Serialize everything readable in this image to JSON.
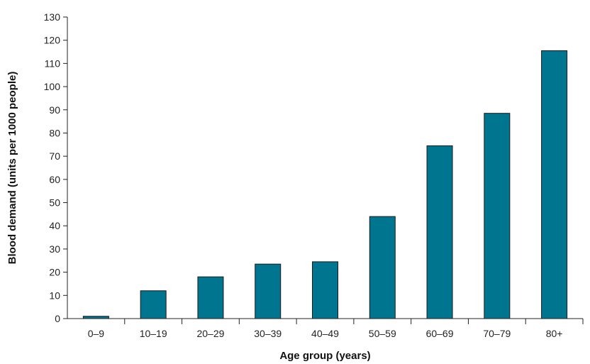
{
  "chart_data": {
    "type": "bar",
    "title": "",
    "xlabel": "Age group (years)",
    "ylabel": "Blood demand (units per 1000 people)",
    "categories": [
      "0–9",
      "10–19",
      "20–29",
      "30–39",
      "40–49",
      "50–59",
      "60–69",
      "70–79",
      "80+"
    ],
    "values": [
      1,
      12,
      18,
      23.5,
      24.5,
      44,
      74.5,
      88.5,
      115.5
    ],
    "ylim": [
      0,
      130
    ],
    "yticks": [
      0,
      10,
      20,
      30,
      40,
      50,
      60,
      70,
      80,
      90,
      100,
      110,
      120,
      130
    ],
    "grid": false,
    "legend": "none",
    "bar_color": "#00758F",
    "bar_edge_color": "#1a1a1a"
  }
}
